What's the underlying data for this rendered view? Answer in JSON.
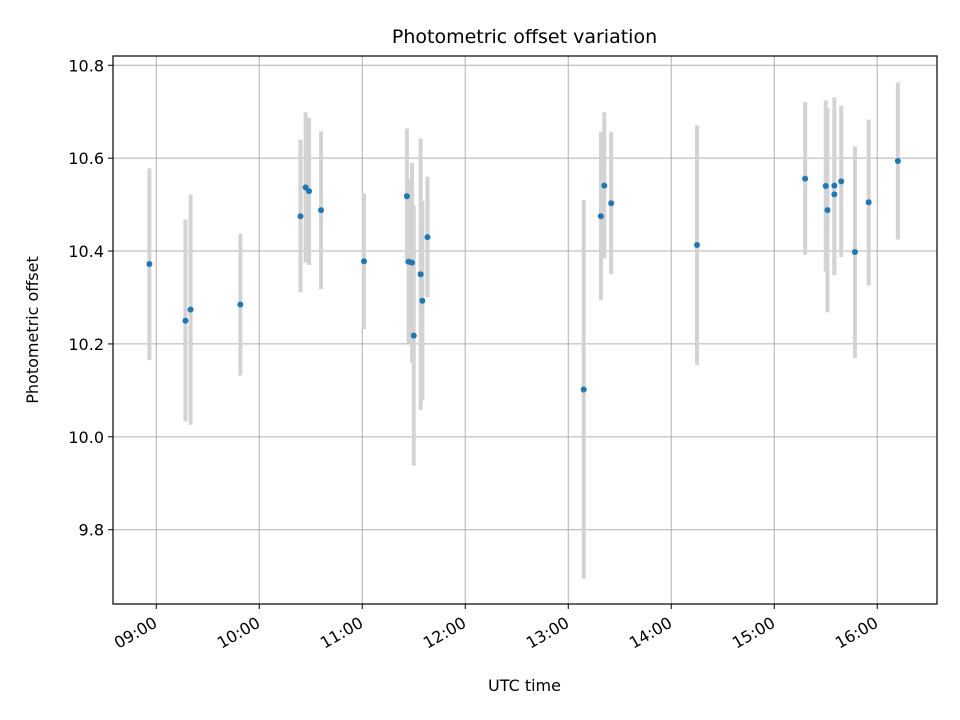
{
  "chart_data": {
    "type": "scatter",
    "title": "Photometric offset variation",
    "xlabel": "UTC time",
    "ylabel": "Photometric offset",
    "x_tick_labels": [
      "09:00",
      "10:00",
      "11:00",
      "12:00",
      "13:00",
      "14:00",
      "15:00",
      "16:00"
    ],
    "x_tick_hours": [
      9,
      10,
      11,
      12,
      13,
      14,
      15,
      16
    ],
    "y_ticks": [
      9.8,
      10.0,
      10.2,
      10.4,
      10.6,
      10.8
    ],
    "y_tick_labels": [
      "9.8",
      "10.0",
      "10.2",
      "10.4",
      "10.6",
      "10.8"
    ],
    "xlim_hours": [
      8.58,
      16.58
    ],
    "ylim": [
      9.64,
      10.82
    ],
    "grid": true,
    "colors": {
      "point": "#1f77b4",
      "errorbar": "#d3d3d3",
      "grid": "#b0b0b0"
    },
    "points": [
      {
        "t": "08:56",
        "y": 10.372,
        "lo": 10.165,
        "hi": 10.578
      },
      {
        "t": "09:17",
        "y": 10.25,
        "lo": 10.033,
        "hi": 10.468
      },
      {
        "t": "09:20",
        "y": 10.274,
        "lo": 10.026,
        "hi": 10.522
      },
      {
        "t": "09:49",
        "y": 10.285,
        "lo": 10.132,
        "hi": 10.437
      },
      {
        "t": "10:24",
        "y": 10.475,
        "lo": 10.311,
        "hi": 10.64
      },
      {
        "t": "10:27",
        "y": 10.537,
        "lo": 10.375,
        "hi": 10.699
      },
      {
        "t": "10:29",
        "y": 10.529,
        "lo": 10.37,
        "hi": 10.687
      },
      {
        "t": "10:36",
        "y": 10.488,
        "lo": 10.318,
        "hi": 10.658
      },
      {
        "t": "11:01",
        "y": 10.378,
        "lo": 10.232,
        "hi": 10.524
      },
      {
        "t": "11:26",
        "y": 10.518,
        "lo": 10.372,
        "hi": 10.664
      },
      {
        "t": "11:27",
        "y": 10.377,
        "lo": 10.2,
        "hi": 10.555
      },
      {
        "t": "11:29",
        "y": 10.375,
        "lo": 10.16,
        "hi": 10.59
      },
      {
        "t": "11:30",
        "y": 10.218,
        "lo": 9.938,
        "hi": 10.498
      },
      {
        "t": "11:34",
        "y": 10.35,
        "lo": 10.058,
        "hi": 10.642
      },
      {
        "t": "11:35",
        "y": 10.293,
        "lo": 10.078,
        "hi": 10.508
      },
      {
        "t": "11:38",
        "y": 10.43,
        "lo": 10.3,
        "hi": 10.56
      },
      {
        "t": "13:09",
        "y": 10.102,
        "lo": 9.694,
        "hi": 10.51
      },
      {
        "t": "13:19",
        "y": 10.475,
        "lo": 10.294,
        "hi": 10.657
      },
      {
        "t": "13:21",
        "y": 10.541,
        "lo": 10.384,
        "hi": 10.699
      },
      {
        "t": "13:25",
        "y": 10.503,
        "lo": 10.35,
        "hi": 10.657
      },
      {
        "t": "14:15",
        "y": 10.413,
        "lo": 10.155,
        "hi": 10.671
      },
      {
        "t": "15:18",
        "y": 10.556,
        "lo": 10.392,
        "hi": 10.721
      },
      {
        "t": "15:30",
        "y": 10.54,
        "lo": 10.356,
        "hi": 10.724
      },
      {
        "t": "15:31",
        "y": 10.488,
        "lo": 10.268,
        "hi": 10.708
      },
      {
        "t": "15:35",
        "y": 10.522,
        "lo": 10.348,
        "hi": 10.696
      },
      {
        "t": "15:35",
        "y": 10.541,
        "lo": 10.352,
        "hi": 10.731
      },
      {
        "t": "15:39",
        "y": 10.55,
        "lo": 10.387,
        "hi": 10.713
      },
      {
        "t": "15:47",
        "y": 10.398,
        "lo": 10.17,
        "hi": 10.625
      },
      {
        "t": "15:55",
        "y": 10.505,
        "lo": 10.326,
        "hi": 10.683
      },
      {
        "t": "16:12",
        "y": 10.594,
        "lo": 10.425,
        "hi": 10.763
      }
    ]
  }
}
